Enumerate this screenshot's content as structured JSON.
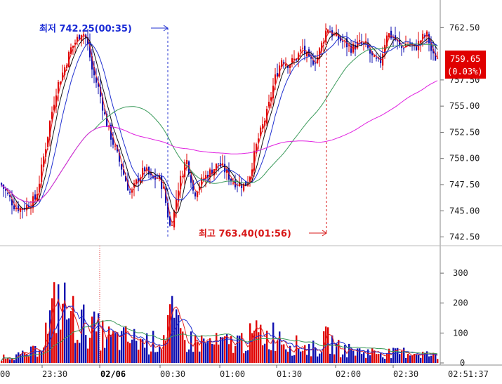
{
  "chart_data": {
    "type": "candlestick",
    "price_axis": {
      "ticks": [
        "762.50",
        "757.50",
        "755.00",
        "752.50",
        "750.00",
        "747.50",
        "745.00",
        "742.50"
      ],
      "tick_values": [
        762.5,
        757.5,
        755.0,
        752.5,
        750.0,
        747.5,
        745.0,
        742.5
      ],
      "range": [
        742.0,
        764.6
      ]
    },
    "volume_axis": {
      "ticks": [
        "300",
        "200",
        "100",
        "0"
      ],
      "tick_values": [
        300,
        200,
        100,
        0
      ],
      "range": [
        0,
        380
      ]
    },
    "time_axis": {
      "labels": [
        "00",
        "23:30",
        "02/06",
        "00:30",
        "01:00",
        "01:30",
        "02:00",
        "02:30"
      ],
      "date_separator": "02/06",
      "current_time": "02:51:37"
    },
    "current_price": {
      "value": "759.65",
      "change": "(0.03%)",
      "price": 759.65
    },
    "annotations": {
      "low": {
        "text": "최저 742.25(00:35)",
        "value": 742.25,
        "time": "00:35"
      },
      "high": {
        "text": "최고 763.40(01:56)",
        "value": 763.4,
        "time": "01:56"
      }
    },
    "colors": {
      "up": "#e00000",
      "down": "#1010b0",
      "ma_red": "#e02020",
      "ma_black": "#111111",
      "ma_blue": "#2030d0",
      "ma_green": "#3a9a5a",
      "ma_magenta": "#e020e0",
      "price_label_bg": "#e00000"
    },
    "price_anchors": [
      [
        0,
        747.6
      ],
      [
        10,
        746.5
      ],
      [
        20,
        745.4
      ],
      [
        30,
        745.2
      ],
      [
        40,
        745.6
      ],
      [
        50,
        746.2
      ],
      [
        55,
        747.8
      ],
      [
        60,
        749.8
      ],
      [
        65,
        751.5
      ],
      [
        70,
        753.5
      ],
      [
        80,
        756.8
      ],
      [
        90,
        758.5
      ],
      [
        100,
        760.5
      ],
      [
        110,
        761.5
      ],
      [
        115,
        762.1
      ],
      [
        120,
        761.8
      ],
      [
        125,
        760.5
      ],
      [
        130,
        758.5
      ],
      [
        140,
        756.5
      ],
      [
        150,
        753.5
      ],
      [
        160,
        751.5
      ],
      [
        170,
        749.5
      ],
      [
        180,
        747.5
      ],
      [
        185,
        746.5
      ],
      [
        195,
        748.0
      ],
      [
        205,
        749.0
      ],
      [
        215,
        748.0
      ],
      [
        225,
        748.2
      ],
      [
        232,
        747.0
      ],
      [
        237,
        745.0
      ],
      [
        241,
        743.5
      ],
      [
        246,
        744.5
      ],
      [
        252,
        747.0
      ],
      [
        258,
        748.5
      ],
      [
        264,
        750.0
      ],
      [
        270,
        748.5
      ],
      [
        275,
        746.5
      ],
      [
        280,
        747.2
      ],
      [
        290,
        748.2
      ],
      [
        300,
        748.8
      ],
      [
        310,
        749.5
      ],
      [
        320,
        748.8
      ],
      [
        330,
        747.8
      ],
      [
        340,
        747.6
      ],
      [
        348,
        747.4
      ],
      [
        355,
        748.5
      ],
      [
        360,
        750.0
      ],
      [
        365,
        751.5
      ],
      [
        370,
        752.5
      ],
      [
        380,
        754.5
      ],
      [
        390,
        757.5
      ],
      [
        400,
        759.5
      ],
      [
        410,
        759.0
      ],
      [
        420,
        759.5
      ],
      [
        430,
        760.5
      ],
      [
        440,
        759.2
      ],
      [
        450,
        759.5
      ],
      [
        460,
        761.5
      ],
      [
        465,
        762.6
      ],
      [
        470,
        762.0
      ],
      [
        480,
        761.5
      ],
      [
        490,
        761.0
      ],
      [
        500,
        760.5
      ],
      [
        510,
        761.0
      ],
      [
        520,
        760.8
      ],
      [
        530,
        759.5
      ],
      [
        540,
        759.0
      ],
      [
        550,
        762.0
      ],
      [
        560,
        761.5
      ],
      [
        570,
        760.5
      ],
      [
        580,
        761.0
      ],
      [
        590,
        760.5
      ],
      [
        600,
        761.5
      ],
      [
        608,
        761.8
      ],
      [
        612,
        760.5
      ],
      [
        617,
        759.5
      ],
      [
        620,
        759.65
      ]
    ],
    "volume_anchors": [
      [
        0,
        20
      ],
      [
        10,
        28
      ],
      [
        20,
        25
      ],
      [
        35,
        30
      ],
      [
        50,
        45
      ],
      [
        60,
        90
      ],
      [
        70,
        150
      ],
      [
        80,
        230
      ],
      [
        90,
        205
      ],
      [
        100,
        175
      ],
      [
        110,
        145
      ],
      [
        120,
        140
      ],
      [
        130,
        125
      ],
      [
        140,
        115
      ],
      [
        150,
        95
      ],
      [
        165,
        85
      ],
      [
        180,
        90
      ],
      [
        200,
        80
      ],
      [
        215,
        75
      ],
      [
        230,
        80
      ],
      [
        240,
        180
      ],
      [
        250,
        125
      ],
      [
        260,
        90
      ],
      [
        270,
        80
      ],
      [
        290,
        75
      ],
      [
        310,
        70
      ],
      [
        330,
        75
      ],
      [
        350,
        85
      ],
      [
        360,
        100
      ],
      [
        370,
        110
      ],
      [
        380,
        95
      ],
      [
        395,
        110
      ],
      [
        410,
        70
      ],
      [
        430,
        60
      ],
      [
        450,
        50
      ],
      [
        465,
        90
      ],
      [
        480,
        55
      ],
      [
        500,
        45
      ],
      [
        520,
        40
      ],
      [
        540,
        40
      ],
      [
        560,
        35
      ],
      [
        580,
        40
      ],
      [
        600,
        35
      ],
      [
        620,
        25
      ]
    ]
  }
}
